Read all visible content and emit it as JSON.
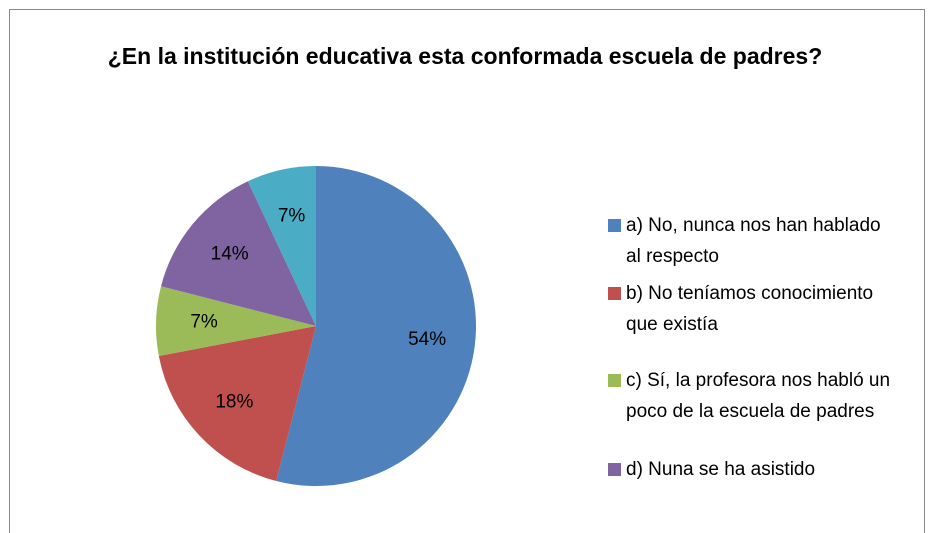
{
  "chart_data": {
    "type": "pie",
    "title": "¿En la institución educativa  esta conformada escuela de padres?",
    "categories": [
      "a) No, nunca nos han hablado al respecto",
      "b) No teníamos conocimiento que existía",
      "c) Sí, la profesora nos habló un poco de la escuela de padres",
      "d) Nuna se ha asistido",
      null
    ],
    "values": [
      54,
      18,
      7,
      14,
      7
    ],
    "value_labels": [
      "54%",
      "18%",
      "7%",
      "14%",
      "7%"
    ],
    "colors": [
      "#4f81bd",
      "#c0504d",
      "#9bbb59",
      "#8064a2",
      "#4bacc6"
    ],
    "legend": "right"
  }
}
